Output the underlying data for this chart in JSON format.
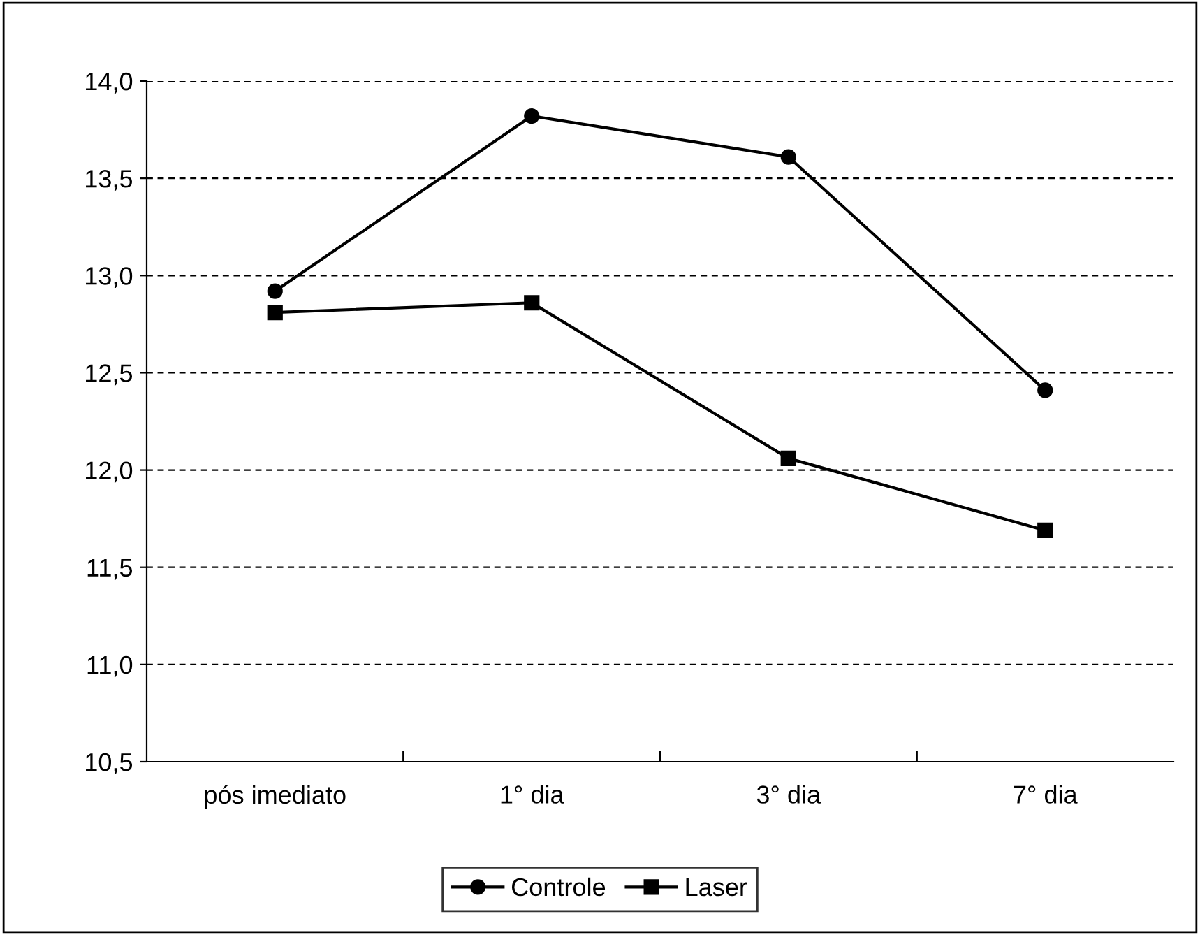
{
  "chart_data": {
    "type": "line",
    "categories": [
      "pós imediato",
      "1° dia",
      "3° dia",
      "7° dia"
    ],
    "series": [
      {
        "name": "Controle",
        "color": "#000000",
        "marker": "circle",
        "values": [
          12.92,
          13.82,
          13.61,
          12.41
        ]
      },
      {
        "name": "Laser",
        "color": "#000000",
        "marker": "square",
        "values": [
          12.81,
          12.86,
          12.06,
          11.69
        ]
      }
    ],
    "ylim": [
      10.5,
      14.0
    ],
    "yticks": [
      {
        "value": 10.5,
        "label": "10,5"
      },
      {
        "value": 11.0,
        "label": "11,0"
      },
      {
        "value": 11.5,
        "label": "11,5"
      },
      {
        "value": 12.0,
        "label": "12,0"
      },
      {
        "value": 12.5,
        "label": "12,5"
      },
      {
        "value": 13.0,
        "label": "13,0"
      },
      {
        "value": 13.5,
        "label": "13,5"
      },
      {
        "value": 14.0,
        "label": "14,0"
      }
    ],
    "grid": "y",
    "legend": "bottom",
    "line_style": "solid"
  }
}
